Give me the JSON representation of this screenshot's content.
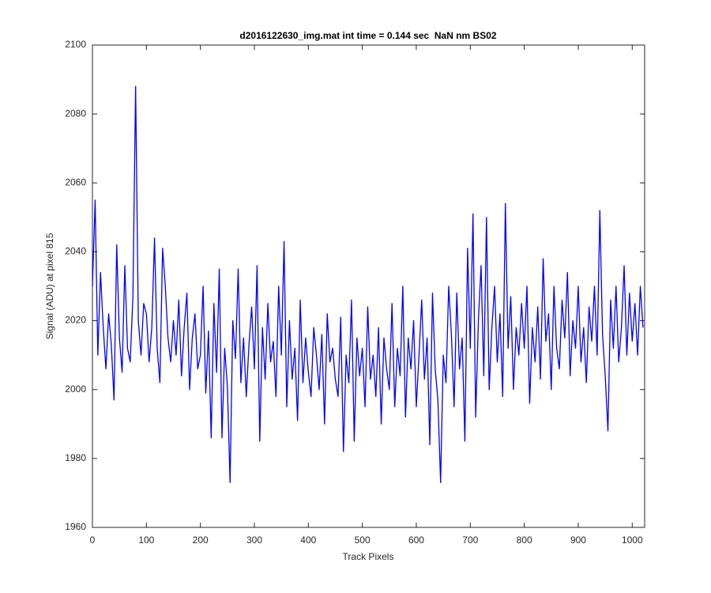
{
  "chart_data": {
    "type": "line",
    "title": "d2016122630_img.mat int time = 0.144 sec  NaN nm BS02",
    "xlabel": "Track Pixels",
    "ylabel": "Signal (ADU) at pixel 815",
    "xlim": [
      0,
      1023
    ],
    "ylim": [
      1960,
      2100
    ],
    "xticks": [
      0,
      100,
      200,
      300,
      400,
      500,
      600,
      700,
      800,
      900,
      1000
    ],
    "yticks": [
      1960,
      1980,
      2000,
      2020,
      2040,
      2060,
      2080,
      2100
    ],
    "grid": false,
    "x": [
      0,
      5,
      10,
      15,
      20,
      25,
      30,
      35,
      40,
      45,
      50,
      55,
      60,
      65,
      70,
      75,
      80,
      85,
      90,
      95,
      100,
      105,
      110,
      115,
      120,
      125,
      130,
      135,
      140,
      145,
      150,
      155,
      160,
      165,
      170,
      175,
      180,
      185,
      190,
      195,
      200,
      205,
      210,
      215,
      220,
      225,
      230,
      235,
      240,
      245,
      250,
      255,
      260,
      265,
      270,
      275,
      280,
      285,
      290,
      295,
      300,
      305,
      310,
      315,
      320,
      325,
      330,
      335,
      340,
      345,
      350,
      355,
      360,
      365,
      370,
      375,
      380,
      385,
      390,
      395,
      400,
      405,
      410,
      415,
      420,
      425,
      430,
      435,
      440,
      445,
      450,
      455,
      460,
      465,
      470,
      475,
      480,
      485,
      490,
      495,
      500,
      505,
      510,
      515,
      520,
      525,
      530,
      535,
      540,
      545,
      550,
      555,
      560,
      565,
      570,
      575,
      580,
      585,
      590,
      595,
      600,
      605,
      610,
      615,
      620,
      625,
      630,
      635,
      640,
      645,
      650,
      655,
      660,
      665,
      670,
      675,
      680,
      685,
      690,
      695,
      700,
      705,
      710,
      715,
      720,
      725,
      730,
      735,
      740,
      745,
      750,
      755,
      760,
      765,
      770,
      775,
      780,
      785,
      790,
      795,
      800,
      805,
      810,
      815,
      820,
      825,
      830,
      835,
      840,
      845,
      850,
      855,
      860,
      865,
      870,
      875,
      880,
      885,
      890,
      895,
      900,
      905,
      910,
      915,
      920,
      925,
      930,
      935,
      940,
      945,
      950,
      955,
      960,
      965,
      970,
      975,
      980,
      985,
      990,
      995,
      1000,
      1005,
      1010,
      1015,
      1020
    ],
    "series": [
      {
        "name": "signal",
        "color": "#0000ff",
        "values": [
          2030,
          2055,
          2010,
          2034,
          2018,
          2006,
          2022,
          2013,
          1997,
          2042,
          2015,
          2005,
          2036,
          2012,
          2008,
          2027,
          2088,
          2020,
          2010,
          2025,
          2022,
          2008,
          2018,
          2044,
          2012,
          2002,
          2041,
          2030,
          2015,
          2008,
          2020,
          2010,
          2026,
          2004,
          2018,
          2028,
          2000,
          2015,
          2022,
          2006,
          2010,
          2030,
          1999,
          2017,
          1986,
          2025,
          2005,
          2035,
          1986,
          2012,
          2001,
          1973,
          2020,
          2009,
          2035,
          2002,
          2015,
          1998,
          2013,
          2024,
          2006,
          2036,
          1985,
          2018,
          2003,
          2025,
          2008,
          2014,
          1998,
          2030,
          2010,
          2043,
          1995,
          2020,
          2003,
          2012,
          1991,
          2026,
          2002,
          2015,
          2005,
          1998,
          2018,
          2010,
          2000,
          2016,
          1990,
          2022,
          2008,
          2012,
          2003,
          1998,
          2021,
          1982,
          2010,
          2002,
          2026,
          1985,
          2015,
          2004,
          2012,
          1995,
          2024,
          2003,
          2010,
          1998,
          2018,
          1990,
          2015,
          2006,
          2000,
          2025,
          1995,
          2012,
          2004,
          2030,
          1992,
          2015,
          2006,
          2020,
          1995,
          2010,
          2026,
          2003,
          2015,
          1984,
          2028,
          2006,
          1997,
          1973,
          2010,
          2002,
          2030,
          2016,
          1995,
          2028,
          2006,
          2015,
          1985,
          2041,
          2012,
          2051,
          1992,
          2020,
          2036,
          2004,
          2050,
          2000,
          2018,
          2030,
          2008,
          2022,
          1998,
          2054,
          2012,
          2027,
          2000,
          2018,
          2010,
          2025,
          2012,
          2030,
          1996,
          2018,
          2008,
          2024,
          2003,
          2038,
          2014,
          2022,
          2000,
          2030,
          2012,
          2006,
          2026,
          2015,
          2034,
          2004,
          2020,
          2012,
          2030,
          2008,
          2018,
          2002,
          2024,
          2014,
          2030,
          2010,
          2052,
          2016,
          2004,
          1988,
          2026,
          2012,
          2030,
          2008,
          2018,
          2036,
          2010,
          2028,
          2014,
          2025,
          2010,
          2030,
          2018
        ]
      }
    ]
  }
}
